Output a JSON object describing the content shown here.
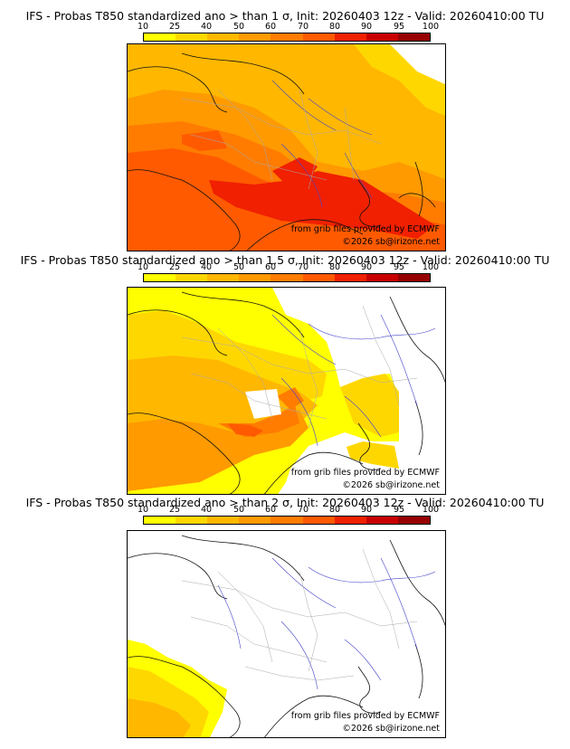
{
  "colorbar": {
    "ticks": [
      "10",
      "25",
      "40",
      "50",
      "60",
      "70",
      "80",
      "90",
      "95",
      "100"
    ],
    "colors": [
      "#ffff00",
      "#ffd700",
      "#ffb700",
      "#ff9a00",
      "#ff7c00",
      "#ff5a00",
      "#f02000",
      "#c80000",
      "#960000",
      "#640000"
    ]
  },
  "panels": [
    {
      "title": "IFS - Probas T850  standardized ano > than 1 σ, Init: 20260403 12z - Valid: 20260410:00 TU",
      "credit_source": "from grib files provided by ECMWF",
      "credit_copyright": "©2026 sb@irizone.net"
    },
    {
      "title": "IFS - Probas T850  standardized ano > than 1.5 σ, Init: 20260403 12z - Valid: 20260410:00 TU",
      "credit_source": "from grib files provided by ECMWF",
      "credit_copyright": "©2026 sb@irizone.net"
    },
    {
      "title": "IFS - Probas T850  standardized ano > than 2 σ, Init: 20260403 12z - Valid: 20260410:00 TU",
      "credit_source": "from grib files provided by ECMWF",
      "credit_copyright": "©2026 sb@irizone.net"
    }
  ]
}
